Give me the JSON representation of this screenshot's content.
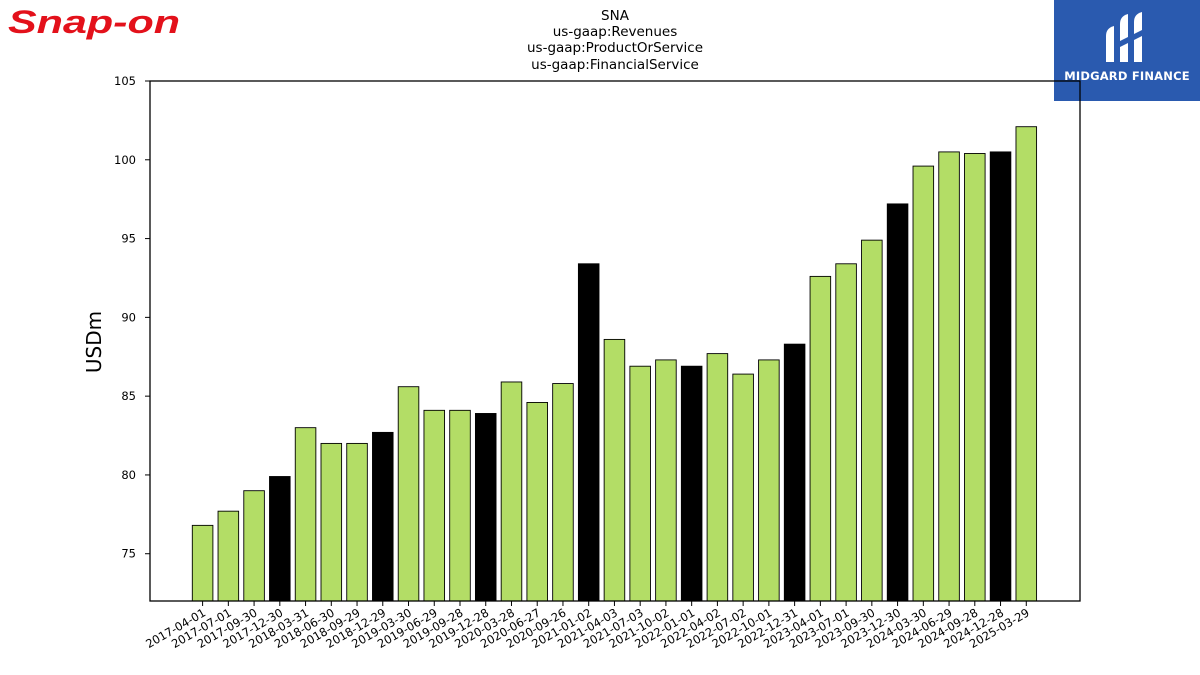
{
  "branding": {
    "left_logo_text": "Snap-on",
    "right_logo_text": "MIDGARD FINANCE",
    "brand_red": "#e3111b",
    "brand_blue": "#2a5aaf"
  },
  "chart_data": {
    "type": "bar",
    "title_lines": [
      "SNA",
      "us-gaap:Revenues",
      "us-gaap:ProductOrService",
      "us-gaap:FinancialService"
    ],
    "xlabel": "",
    "ylabel": "USDm",
    "ylim": [
      72,
      105
    ],
    "yticks": [
      75,
      80,
      85,
      90,
      95,
      100,
      105
    ],
    "grid": false,
    "colors": {
      "quarter": "#b3dd66",
      "fiscal_year_end": "#000000"
    },
    "categories": [
      "2017-04-01",
      "2017-07-01",
      "2017-09-30",
      "2017-12-30",
      "2018-03-31",
      "2018-06-30",
      "2018-09-29",
      "2018-12-29",
      "2019-03-30",
      "2019-06-29",
      "2019-09-28",
      "2019-12-28",
      "2020-03-28",
      "2020-06-27",
      "2020-09-26",
      "2021-01-02",
      "2021-04-03",
      "2021-07-03",
      "2021-10-02",
      "2022-01-01",
      "2022-04-02",
      "2022-07-02",
      "2022-10-01",
      "2022-12-31",
      "2023-04-01",
      "2023-07-01",
      "2023-09-30",
      "2023-12-30",
      "2024-03-30",
      "2024-06-29",
      "2024-09-28",
      "2024-12-28",
      "2025-03-29"
    ],
    "values": [
      76.8,
      77.7,
      79.0,
      79.9,
      83.0,
      82.0,
      82.0,
      82.7,
      85.6,
      84.1,
      84.1,
      83.9,
      85.9,
      84.6,
      85.8,
      93.4,
      88.6,
      86.9,
      87.3,
      86.9,
      87.7,
      86.4,
      87.3,
      88.3,
      92.6,
      93.4,
      94.9,
      97.2,
      99.6,
      100.5,
      100.4,
      100.5,
      102.1
    ],
    "highlight": [
      false,
      false,
      false,
      true,
      false,
      false,
      false,
      true,
      false,
      false,
      false,
      true,
      false,
      false,
      false,
      true,
      false,
      false,
      false,
      true,
      false,
      false,
      false,
      true,
      false,
      false,
      false,
      true,
      false,
      false,
      false,
      true,
      false
    ]
  }
}
